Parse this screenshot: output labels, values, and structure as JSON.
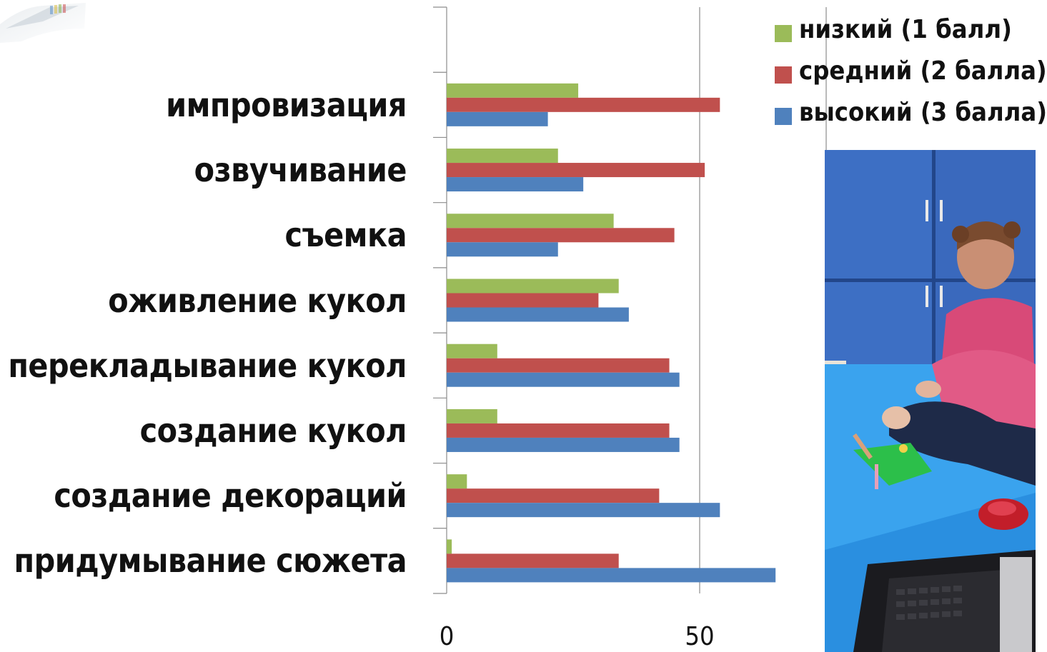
{
  "chart_data": {
    "type": "bar",
    "orientation": "horizontal",
    "categories": [
      "импровизация",
      "озвучивание ",
      "съемка ",
      "оживление кукол",
      "перекладывание кукол",
      "создание кукол ",
      "создание декораций",
      "придумывание сюжета"
    ],
    "series": [
      {
        "name": "низкий (1 балл)",
        "color": "#9bbb59",
        "values": [
          26,
          22,
          33,
          34,
          10,
          10,
          4,
          1
        ]
      },
      {
        "name": "средний (2 балла)",
        "color": "#c0504d",
        "values": [
          54,
          51,
          45,
          30,
          44,
          44,
          42,
          34
        ]
      },
      {
        "name": "высокий (3 балла)",
        "color": "#4f81bd",
        "values": [
          20,
          27,
          22,
          36,
          46,
          46,
          54,
          65
        ]
      }
    ],
    "x_ticks": [
      "0",
      "50"
    ],
    "xlim": [
      0,
      100
    ],
    "grid": "vertical major gridlines",
    "legend_position": "top-right",
    "title": "",
    "xlabel": "",
    "ylabel": ""
  }
}
